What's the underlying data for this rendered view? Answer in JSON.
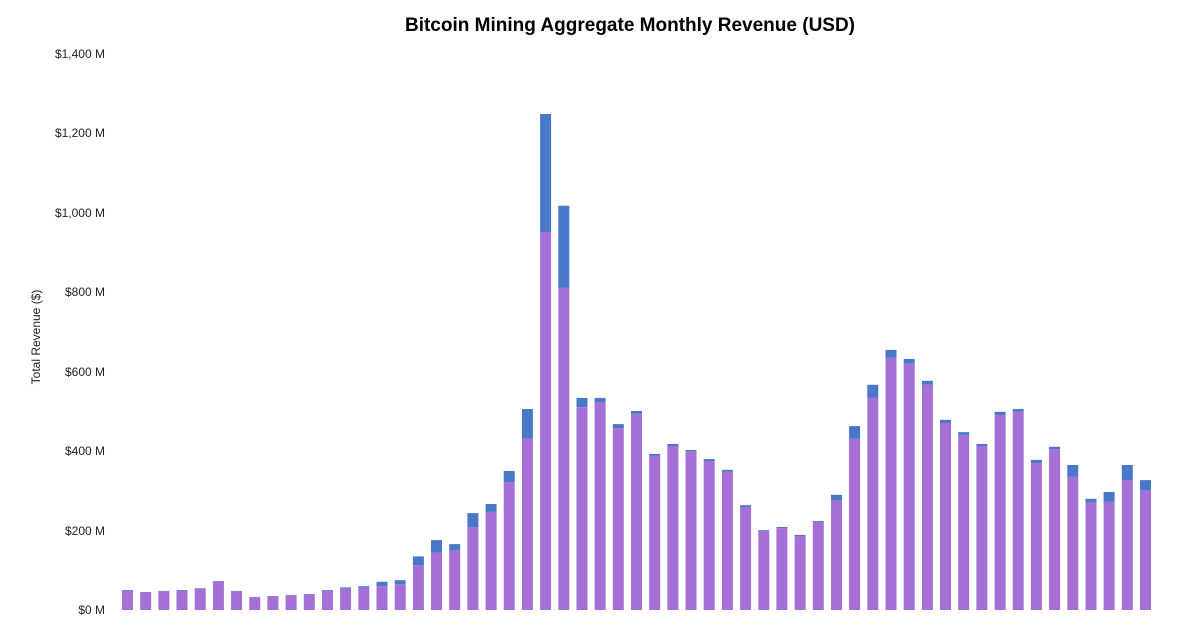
{
  "chart_data": {
    "type": "bar",
    "stacked": true,
    "title": "Bitcoin Mining Aggregate Monthly Revenue (USD)",
    "xlabel": "",
    "ylabel": "Total Revenue ($)",
    "ylim": [
      0,
      1400
    ],
    "y_ticks": [
      {
        "value": 0,
        "label": "$0 M"
      },
      {
        "value": 200,
        "label": "$200 M"
      },
      {
        "value": 400,
        "label": "$400 M"
      },
      {
        "value": 600,
        "label": "$600 M"
      },
      {
        "value": 800,
        "label": "$800 M"
      },
      {
        "value": 1000,
        "label": "$1,000 M"
      },
      {
        "value": 1200,
        "label": "$1,200 M"
      },
      {
        "value": 1400,
        "label": "$1,400 M"
      }
    ],
    "grid": false,
    "legend": "none",
    "colors": {
      "bottom": "#a66fd6",
      "top": "#4a78c8"
    },
    "series": [
      {
        "name": "bottom",
        "values": [
          49,
          44,
          47,
          49,
          54,
          72,
          47,
          32,
          34,
          37,
          39,
          48,
          54,
          56,
          60,
          65,
          113,
          144,
          151,
          209,
          247,
          322,
          431,
          952,
          811,
          511,
          524,
          458,
          494,
          388,
          413,
          400,
          375,
          348,
          259,
          199,
          206,
          186,
          222,
          277,
          431,
          534,
          635,
          620,
          567,
          471,
          441,
          413,
          491,
          499,
          370,
          405,
          335,
          270,
          272,
          327,
          300
        ]
      },
      {
        "name": "top",
        "values": [
          1,
          1,
          1,
          1,
          1,
          1,
          1,
          1,
          1,
          1,
          1,
          2,
          3,
          4,
          11,
          10,
          22,
          32,
          15,
          35,
          20,
          28,
          75,
          297,
          207,
          23,
          10,
          10,
          7,
          5,
          5,
          3,
          5,
          5,
          5,
          2,
          3,
          3,
          2,
          13,
          32,
          33,
          20,
          12,
          10,
          8,
          7,
          5,
          8,
          7,
          8,
          6,
          30,
          10,
          25,
          38,
          27
        ]
      }
    ]
  }
}
